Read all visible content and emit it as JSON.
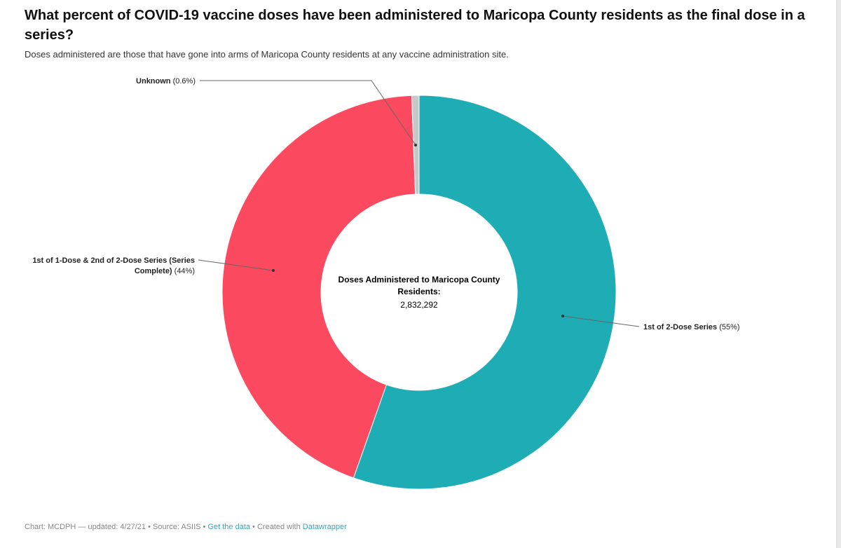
{
  "title": "What percent of COVID-19 vaccine doses have been administered to Maricopa County residents as the final dose in a series?",
  "subtitle": "Doses administered are those that have gone into arms of Maricopa County residents at any vaccine administration site.",
  "center": {
    "label_line1": "Doses Administered to Maricopa County",
    "label_line2": "Residents:",
    "value": "2,832,292"
  },
  "footer": {
    "prefix": "Chart: MCDPH — updated: 4/27/21 • Source: ASIIS • ",
    "get_data": "Get the data",
    "mid": " • Created with ",
    "datawrapper": "Datawrapper"
  },
  "chart_data": {
    "type": "pie",
    "variant": "donut",
    "slices": [
      {
        "name": "1st of 2-Dose Series",
        "value": 55.4,
        "display": "(55%)",
        "color": "#1eadb5"
      },
      {
        "name": "1st of 1-Dose & 2nd of 2-Dose Series (Series Complete)",
        "name_line1": "1st of 1-Dose & 2nd of 2-Dose Series (Series",
        "name_line2": "Complete)",
        "value": 44.0,
        "display": "(44%)",
        "color": "#fb4a5f"
      },
      {
        "name": "Unknown",
        "value": 0.6,
        "display": "(0.6%)",
        "color": "#c8c8c8"
      }
    ]
  }
}
